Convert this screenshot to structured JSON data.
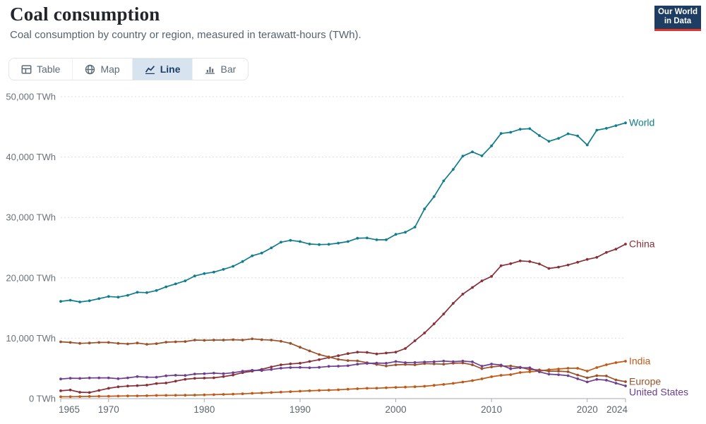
{
  "header": {
    "title": "Coal consumption",
    "subtitle": "Coal consumption by country or region, measured in terawatt-hours (TWh)."
  },
  "logo": {
    "line1": "Our World",
    "line2": "in Data",
    "bg": "#1d3d63",
    "accent": "#e0362c"
  },
  "tabs": [
    {
      "id": "table",
      "label": "Table",
      "active": false
    },
    {
      "id": "map",
      "label": "Map",
      "active": false
    },
    {
      "id": "line",
      "label": "Line",
      "active": true
    },
    {
      "id": "bar",
      "label": "Bar",
      "active": false
    }
  ],
  "chart_data": {
    "type": "line",
    "title": "Coal consumption",
    "subtitle": "Coal consumption by country or region, measured in terawatt-hours (TWh).",
    "xlim": [
      1965,
      2024
    ],
    "ylim": [
      0,
      50000
    ],
    "grid": "dashed-horizontal",
    "legend_position": "right-end-labels",
    "x_axis": {
      "ticks": [
        {
          "value": 1965,
          "label": "1965"
        },
        {
          "value": 1970,
          "label": "1970"
        },
        {
          "value": 1980,
          "label": "1980"
        },
        {
          "value": 1990,
          "label": "1990"
        },
        {
          "value": 2000,
          "label": "2000"
        },
        {
          "value": 2010,
          "label": "2010"
        },
        {
          "value": 2020,
          "label": "2020"
        },
        {
          "value": 2024,
          "label": "2024"
        }
      ]
    },
    "y_axis": {
      "ticks": [
        {
          "value": 0,
          "label": "0 TWh"
        },
        {
          "value": 10000,
          "label": "10,000 TWh"
        },
        {
          "value": 20000,
          "label": "20,000 TWh"
        },
        {
          "value": 30000,
          "label": "30,000 TWh"
        },
        {
          "value": 40000,
          "label": "40,000 TWh"
        },
        {
          "value": 50000,
          "label": "50,000 TWh"
        }
      ]
    },
    "x": [
      1965,
      1966,
      1967,
      1968,
      1969,
      1970,
      1971,
      1972,
      1973,
      1974,
      1975,
      1976,
      1977,
      1978,
      1979,
      1980,
      1981,
      1982,
      1983,
      1984,
      1985,
      1986,
      1987,
      1988,
      1989,
      1990,
      1991,
      1992,
      1993,
      1994,
      1995,
      1996,
      1997,
      1998,
      1999,
      2000,
      2001,
      2002,
      2003,
      2004,
      2005,
      2006,
      2007,
      2008,
      2009,
      2010,
      2011,
      2012,
      2013,
      2014,
      2015,
      2016,
      2017,
      2018,
      2019,
      2020,
      2021,
      2022,
      2023,
      2024
    ],
    "series": [
      {
        "id": "world",
        "name": "World",
        "color": "#107D8C",
        "values": [
          16100,
          16300,
          16000,
          16200,
          16550,
          16900,
          16800,
          17100,
          17600,
          17550,
          17900,
          18500,
          19000,
          19500,
          20300,
          20700,
          20950,
          21400,
          21900,
          22700,
          23650,
          24100,
          24950,
          25900,
          26200,
          26000,
          25600,
          25500,
          25550,
          25750,
          26000,
          26550,
          26600,
          26300,
          26300,
          27200,
          27550,
          28400,
          31400,
          33450,
          36050,
          37950,
          40150,
          40850,
          40200,
          41850,
          43900,
          44100,
          44600,
          44700,
          43550,
          42600,
          43100,
          43850,
          43500,
          42000,
          44450,
          44750,
          45200,
          45650
        ]
      },
      {
        "id": "china",
        "name": "China",
        "color": "#883039",
        "values": [
          1300,
          1420,
          1050,
          1000,
          1350,
          1700,
          1950,
          2080,
          2150,
          2230,
          2500,
          2580,
          2880,
          3200,
          3350,
          3400,
          3450,
          3650,
          3900,
          4300,
          4550,
          4850,
          5250,
          5600,
          5750,
          5850,
          6150,
          6450,
          6800,
          7100,
          7450,
          7700,
          7650,
          7400,
          7550,
          7700,
          8300,
          9580,
          10870,
          12380,
          14020,
          15770,
          17300,
          18400,
          19500,
          20230,
          22000,
          22340,
          22800,
          22700,
          22300,
          21550,
          21770,
          22130,
          22580,
          23050,
          23390,
          24210,
          24760,
          25580
        ]
      },
      {
        "id": "india",
        "name": "India",
        "color": "#C05917",
        "values": [
          300,
          320,
          340,
          360,
          380,
          400,
          420,
          440,
          450,
          480,
          520,
          540,
          550,
          560,
          580,
          620,
          660,
          700,
          750,
          800,
          880,
          930,
          1000,
          1080,
          1150,
          1230,
          1300,
          1360,
          1400,
          1460,
          1550,
          1630,
          1700,
          1720,
          1800,
          1860,
          1900,
          1960,
          2050,
          2200,
          2350,
          2520,
          2750,
          2980,
          3270,
          3620,
          3850,
          3970,
          4320,
          4440,
          4560,
          4790,
          4910,
          5020,
          5020,
          4560,
          5140,
          5610,
          5960,
          6190
        ]
      },
      {
        "id": "europe",
        "name": "Europe",
        "color": "#9A5129",
        "values": [
          9400,
          9300,
          9150,
          9200,
          9300,
          9300,
          9150,
          9050,
          9200,
          9000,
          9100,
          9350,
          9400,
          9450,
          9700,
          9650,
          9700,
          9700,
          9750,
          9700,
          9900,
          9750,
          9700,
          9500,
          9150,
          8500,
          7900,
          7300,
          6900,
          6500,
          6300,
          6250,
          5950,
          5650,
          5400,
          5600,
          5650,
          5600,
          5800,
          5750,
          5700,
          5850,
          5900,
          5600,
          4950,
          5250,
          5400,
          5400,
          5200,
          4800,
          4750,
          4550,
          4550,
          4450,
          3900,
          3450,
          3800,
          3750,
          3100,
          2800
        ]
      },
      {
        "id": "united-states",
        "name": "United States",
        "color": "#6D3E91",
        "values": [
          3250,
          3380,
          3340,
          3420,
          3440,
          3440,
          3290,
          3430,
          3640,
          3550,
          3540,
          3770,
          3870,
          3830,
          4080,
          4120,
          4220,
          4120,
          4290,
          4530,
          4700,
          4650,
          4830,
          5040,
          5140,
          5160,
          5110,
          5180,
          5340,
          5370,
          5440,
          5700,
          5830,
          5890,
          5850,
          6150,
          5960,
          5980,
          6060,
          6110,
          6220,
          6120,
          6210,
          6090,
          5370,
          5720,
          5560,
          4940,
          5120,
          5110,
          4430,
          4040,
          3960,
          3800,
          3280,
          2760,
          3180,
          3050,
          2560,
          2100
        ]
      }
    ]
  }
}
